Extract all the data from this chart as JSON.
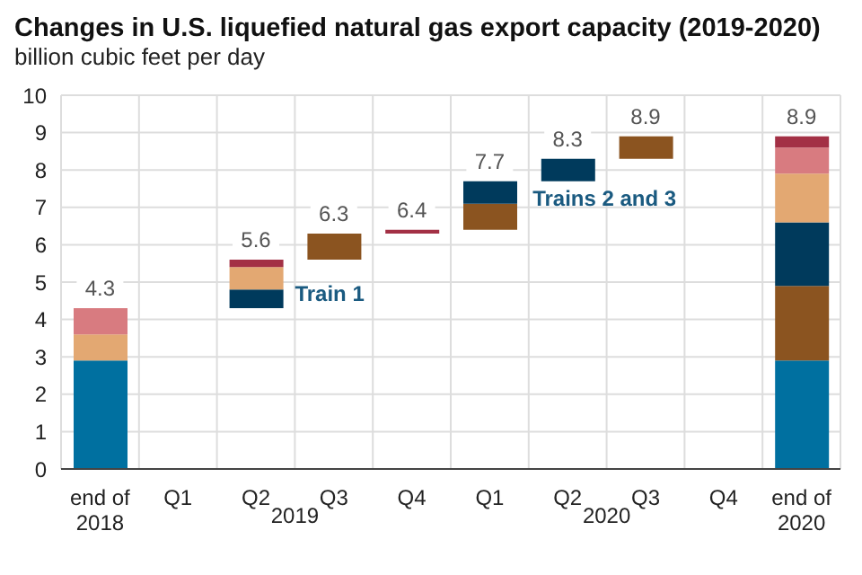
{
  "chart_data": {
    "type": "bar",
    "title": "Changes in U.S. liquefied natural gas export capacity (2019-2020)",
    "subtitle": "billion cubic feet per day",
    "categories": [
      "end of 2018",
      "Q1",
      "Q2",
      "Q3",
      "Q4",
      "Q1",
      "Q2",
      "Q3",
      "Q4",
      "end of 2020"
    ],
    "series": [
      {
        "color": "#0070a0",
        "values": [
          2.9,
          null,
          null,
          null,
          null,
          null,
          null,
          null,
          null,
          2.9
        ],
        "base": [
          0,
          null,
          null,
          null,
          null,
          null,
          null,
          null,
          null,
          0
        ]
      },
      {
        "color": "#8b5420",
        "values": [
          null,
          null,
          null,
          0.7,
          null,
          0.7,
          null,
          0.6,
          null,
          2.0
        ],
        "base": [
          null,
          null,
          null,
          5.6,
          null,
          6.4,
          null,
          8.3,
          null,
          2.9
        ]
      },
      {
        "color": "#003a5c",
        "values": [
          null,
          null,
          0.5,
          null,
          null,
          0.6,
          0.6,
          null,
          null,
          1.7
        ],
        "base": [
          null,
          null,
          4.3,
          null,
          null,
          7.1,
          7.7,
          null,
          null,
          4.9
        ]
      },
      {
        "color": "#e3a872",
        "values": [
          0.7,
          null,
          0.6,
          null,
          null,
          null,
          null,
          null,
          null,
          1.3
        ],
        "base": [
          2.9,
          null,
          4.8,
          null,
          null,
          null,
          null,
          null,
          null,
          6.6
        ]
      },
      {
        "color": "#d87b80",
        "values": [
          0.7,
          null,
          null,
          null,
          null,
          null,
          null,
          null,
          null,
          0.7
        ],
        "base": [
          3.6,
          null,
          null,
          null,
          null,
          null,
          null,
          null,
          null,
          7.9
        ]
      },
      {
        "color": "#a33045",
        "values": [
          null,
          null,
          0.2,
          null,
          0.1,
          null,
          null,
          null,
          null,
          0.3
        ],
        "base": [
          null,
          null,
          5.4,
          null,
          6.3,
          null,
          null,
          null,
          null,
          8.6
        ]
      }
    ],
    "ylim": [
      0,
      10
    ],
    "yticks": [
      0,
      1,
      2,
      3,
      4,
      5,
      6,
      7,
      8,
      9,
      10
    ],
    "grid": true,
    "annotations": [
      "Train 1",
      "Trains 2 and 3",
      "2019",
      "2020",
      {
        "text": "4.3",
        "x": "end of 2018",
        "y": 4.3
      },
      {
        "text": "5.6",
        "x": "Q2",
        "y": 5.6
      },
      {
        "text": "6.3",
        "x": "Q3",
        "y": 6.3
      },
      {
        "text": "6.4",
        "x": "Q4",
        "y": 6.4
      },
      "7.7",
      "8.3",
      "8.9",
      {
        "text": "8.9",
        "x": "end of 2020",
        "y": 8.9
      }
    ]
  }
}
